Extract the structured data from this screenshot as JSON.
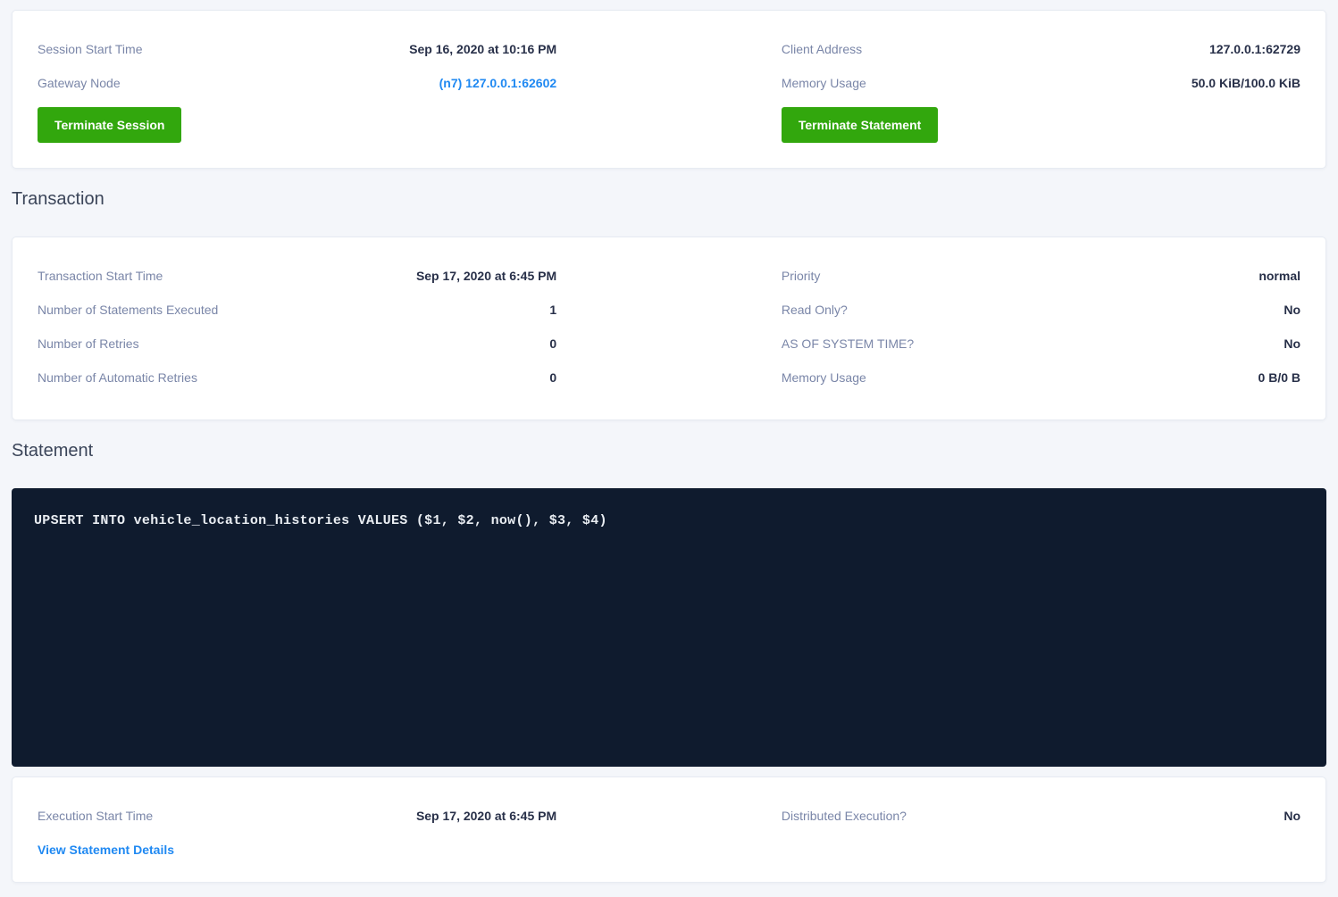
{
  "colors": {
    "page_bg": "#f4f6fa",
    "card_bg": "#ffffff",
    "accent_green": "#32a70d",
    "link_blue": "#2089f2",
    "label_slate": "#7a86a8",
    "value_navy": "#283049",
    "sql_bg": "#0f1b2e"
  },
  "session_card": {
    "left": [
      {
        "label": "Session Start Time",
        "value": "Sep 16, 2020 at 10:16 PM"
      },
      {
        "label": "Gateway Node",
        "value": "(n7) 127.0.0.1:62602"
      }
    ],
    "right": [
      {
        "label": "Client Address",
        "value": "127.0.0.1:62729"
      },
      {
        "label": "Memory Usage",
        "value": "50.0 KiB/100.0 KiB"
      }
    ],
    "terminate_session_label": "Terminate Session",
    "terminate_statement_label": "Terminate Statement"
  },
  "transaction_section": {
    "heading": "Transaction",
    "left": [
      {
        "label": "Transaction Start Time",
        "value": "Sep 17, 2020 at 6:45 PM"
      },
      {
        "label": "Number of Statements Executed",
        "value": "1"
      },
      {
        "label": "Number of Retries",
        "value": "0"
      },
      {
        "label": "Number of Automatic Retries",
        "value": "0"
      }
    ],
    "right": [
      {
        "label": "Priority",
        "value": "normal"
      },
      {
        "label": "Read Only?",
        "value": "No"
      },
      {
        "label": "AS OF SYSTEM TIME?",
        "value": "No"
      },
      {
        "label": "Memory Usage",
        "value": "0 B/0 B"
      }
    ]
  },
  "statement_section": {
    "heading": "Statement",
    "sql": "UPSERT INTO vehicle_location_histories VALUES ($1, $2, now(), $3, $4)",
    "left": [
      {
        "label": "Execution Start Time",
        "value": "Sep 17, 2020 at 6:45 PM"
      }
    ],
    "right": [
      {
        "label": "Distributed Execution?",
        "value": "No"
      }
    ],
    "view_details_label": "View Statement Details"
  }
}
